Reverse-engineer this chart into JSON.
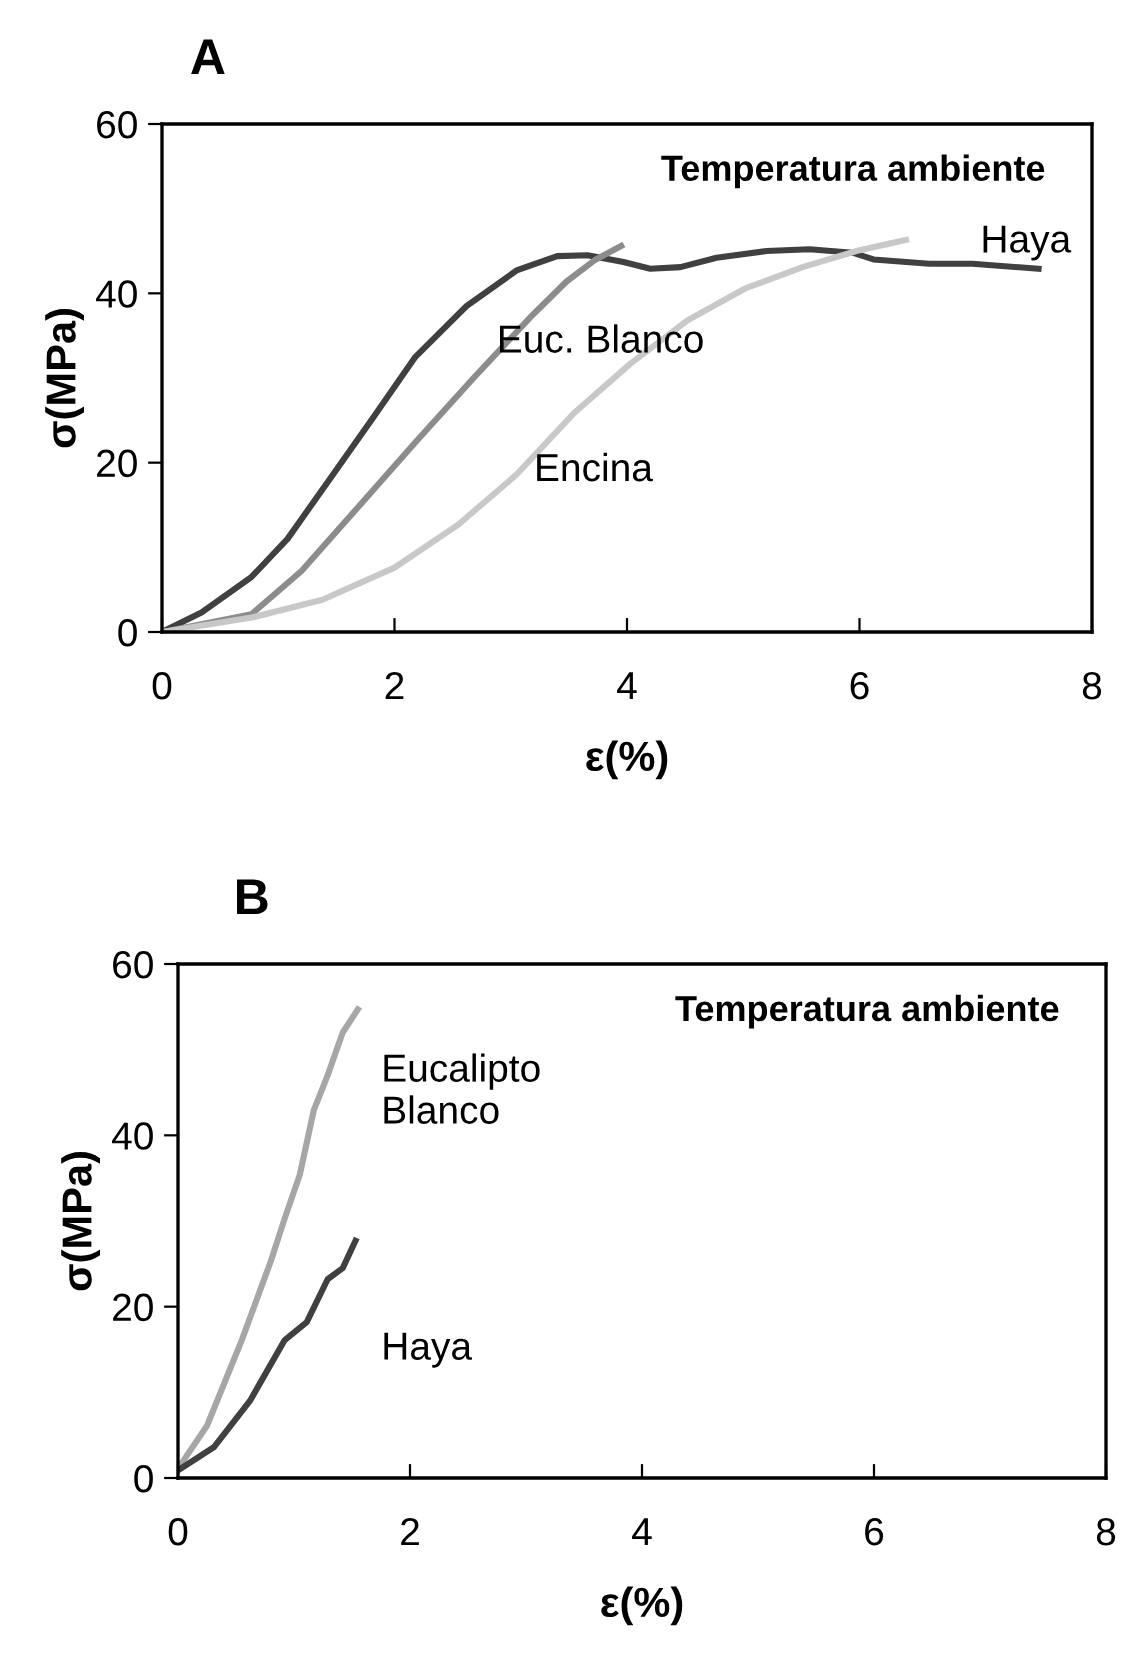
{
  "chart_data": [
    {
      "type": "line",
      "title": "A",
      "xlabel": "ε(%)",
      "ylabel": "σ(MPa)",
      "xlim": [
        0,
        8
      ],
      "ylim": [
        0,
        60
      ],
      "xticks": [
        0,
        2,
        4,
        6,
        8
      ],
      "yticks": [
        0,
        20,
        40,
        60
      ],
      "grid": false,
      "legend": false,
      "series": [
        {
          "name": "Haya",
          "color": "#404040",
          "x": [
            0,
            0.34,
            0.77,
            1.08,
            1.45,
            1.82,
            2.18,
            2.62,
            3.05,
            3.4,
            3.66,
            3.97,
            4.2,
            4.46,
            4.77,
            5.2,
            5.57,
            5.94,
            6.12,
            6.6,
            6.97,
            7.54
          ],
          "values": [
            0,
            2.3,
            6.5,
            11,
            18.2,
            25.4,
            32.5,
            38.5,
            42.7,
            44.4,
            44.5,
            43.7,
            42.9,
            43.1,
            44.2,
            45,
            45.2,
            44.8,
            44,
            43.5,
            43.5,
            42.9
          ]
        },
        {
          "name": "Euc. Blanco",
          "color": "#8c8c8c",
          "x": [
            0,
            0.77,
            1.2,
            1.69,
            2.18,
            2.68,
            3.17,
            3.48,
            3.72,
            3.95
          ],
          "values": [
            0,
            2.1,
            7.2,
            14.8,
            22.4,
            30,
            37.2,
            41.4,
            43.9,
            45.6
          ]
        },
        {
          "name": "Encina",
          "color": "#c8c8c8",
          "x": [
            0,
            0.77,
            1.38,
            2,
            2.55,
            3.05,
            3.54,
            4.03,
            4.52,
            5.02,
            5.51,
            6,
            6.4
          ],
          "values": [
            0,
            1.7,
            3.8,
            7.6,
            12.7,
            18.6,
            25.8,
            31.7,
            36.8,
            40.6,
            43.1,
            45.1,
            46.3
          ]
        }
      ],
      "annotations": [
        "Temperatura ambiente"
      ]
    },
    {
      "type": "line",
      "title": "B",
      "xlabel": "ε(%)",
      "ylabel": "σ(MPa)",
      "xlim": [
        0,
        8
      ],
      "ylim": [
        0,
        60
      ],
      "xticks": [
        0,
        2,
        4,
        6,
        8
      ],
      "yticks": [
        0,
        20,
        40,
        60
      ],
      "grid": false,
      "legend": false,
      "series": [
        {
          "name": "Eucalipto\nBlanco",
          "color": "#a6a6a6",
          "x": [
            0,
            0.25,
            0.55,
            0.8,
            0.92,
            1.05,
            1.17,
            1.29,
            1.42,
            1.55
          ],
          "values": [
            1.1,
            6.1,
            16.1,
            25.3,
            30.3,
            35.4,
            42.9,
            47,
            52,
            54.7
          ]
        },
        {
          "name": "Haya",
          "color": "#404040",
          "x": [
            0,
            0.31,
            0.62,
            0.92,
            1.11,
            1.29,
            1.42,
            1.53
          ],
          "values": [
            0.9,
            3.6,
            9,
            16.1,
            18.2,
            23.2,
            24.5,
            27.7
          ]
        }
      ],
      "annotations": [
        "Temperatura ambiente"
      ]
    }
  ]
}
